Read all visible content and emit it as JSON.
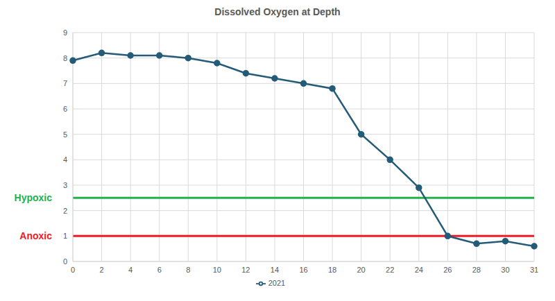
{
  "chart_data": {
    "type": "line",
    "title": "Dissolved Oxygen at Depth",
    "categories": [
      "0",
      "2",
      "4",
      "6",
      "8",
      "10",
      "12",
      "14",
      "16",
      "18",
      "20",
      "22",
      "24",
      "26",
      "28",
      "30",
      "31"
    ],
    "series": [
      {
        "name": "2021",
        "color": "#235b78",
        "marker": "circle",
        "values": [
          7.9,
          8.2,
          8.1,
          8.1,
          8.0,
          7.8,
          7.4,
          7.2,
          7.0,
          6.8,
          5.0,
          4.0,
          2.9,
          1.0,
          0.7,
          0.8,
          0.6
        ]
      }
    ],
    "ylim": [
      0,
      9
    ],
    "yticks": [
      0,
      1,
      2,
      3,
      4,
      5,
      6,
      7,
      8,
      9
    ],
    "grid": true,
    "legend": "bottom",
    "annotations": [
      {
        "text": "Hypoxic",
        "value": 2.5,
        "color": "#22b14c"
      },
      {
        "text": "Anoxic",
        "value": 1.0,
        "color": "#ee1c24"
      }
    ]
  }
}
